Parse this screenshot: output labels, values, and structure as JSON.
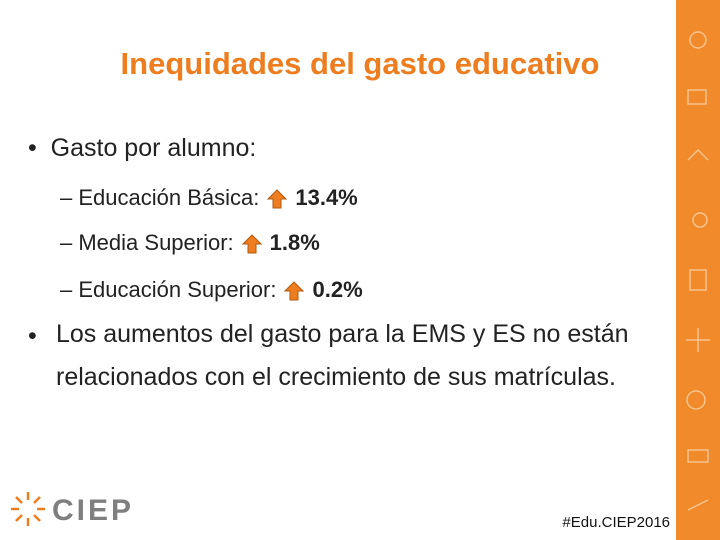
{
  "header": {
    "title": "Inequidades del gasto educativo"
  },
  "bullets": [
    {
      "text": "Gasto por alumno:",
      "items": [
        {
          "label": "Educación Básica:",
          "value": "13.4%"
        },
        {
          "label": "Media Superior:",
          "value": "1.8%"
        },
        {
          "label": "Educación Superior:",
          "value": "0.2%"
        }
      ]
    },
    {
      "text": "Los aumentos del gasto para la EMS y ES no están relacionados con el crecimiento de sus matrículas."
    }
  ],
  "footer": {
    "logo": "CIEP",
    "hashtag": "#Edu.CIEP2016"
  }
}
